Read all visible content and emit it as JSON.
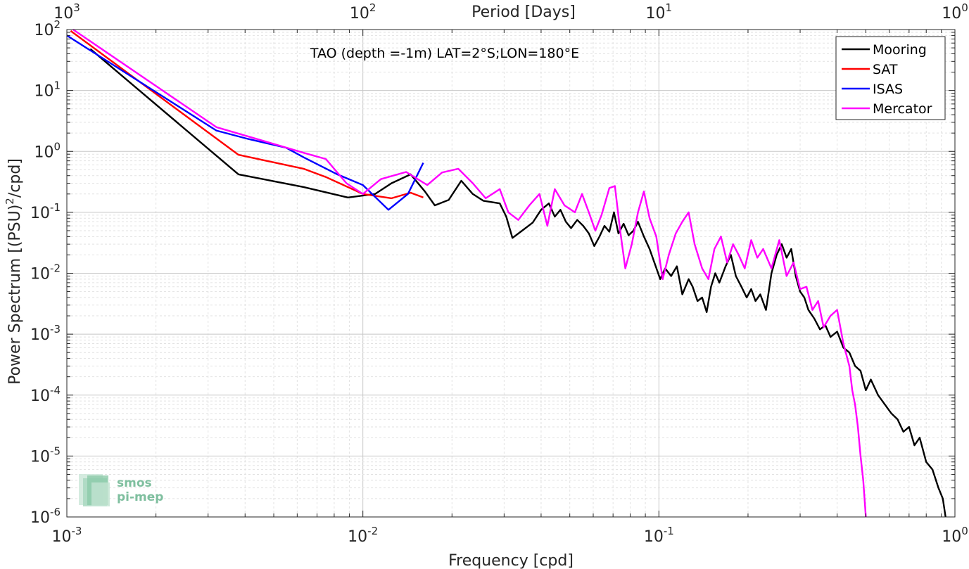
{
  "chart_data": {
    "type": "line",
    "title": "TAO (depth =-1m) LAT=2°S;LON=180°E",
    "xlabel": "Frequency [cpd]",
    "ylabel": "Power Spectrum [(PSU)",
    "ylabel_exp": "2",
    "ylabel_tail": "/cpd]",
    "top_xlabel": "Period [Days]",
    "xscale": "log",
    "yscale": "log",
    "xlim": [
      0.001,
      1
    ],
    "ylim": [
      1e-06,
      100
    ],
    "grid": true,
    "legend_position": "top-right",
    "x_ticks": [
      {
        "value": 0.001,
        "base": "10",
        "exp": "-3"
      },
      {
        "value": 0.01,
        "base": "10",
        "exp": "-2"
      },
      {
        "value": 0.1,
        "base": "10",
        "exp": "-1"
      },
      {
        "value": 1,
        "base": "10",
        "exp": "0"
      }
    ],
    "top_ticks": [
      {
        "value": 0.001,
        "base": "10",
        "exp": "3"
      },
      {
        "value": 0.01,
        "base": "10",
        "exp": "2"
      },
      {
        "value": 0.1,
        "base": "10",
        "exp": "1"
      },
      {
        "value": 1,
        "base": "10",
        "exp": "0"
      }
    ],
    "y_ticks": [
      {
        "value": 100,
        "base": "10",
        "exp": "2"
      },
      {
        "value": 10,
        "base": "10",
        "exp": "1"
      },
      {
        "value": 1,
        "base": "10",
        "exp": "0"
      },
      {
        "value": 0.1,
        "base": "10",
        "exp": "-1"
      },
      {
        "value": 0.01,
        "base": "10",
        "exp": "-2"
      },
      {
        "value": 0.001,
        "base": "10",
        "exp": "-3"
      },
      {
        "value": 0.0001,
        "base": "10",
        "exp": "-4"
      },
      {
        "value": 1e-05,
        "base": "10",
        "exp": "-5"
      },
      {
        "value": 1e-06,
        "base": "10",
        "exp": "-6"
      }
    ],
    "series": [
      {
        "name": "Mooring",
        "color": "#000000",
        "points": [
          [
            0.0012,
            48
          ],
          [
            0.0038,
            0.42
          ],
          [
            0.0063,
            0.26
          ],
          [
            0.0089,
            0.175
          ],
          [
            0.011,
            0.2
          ],
          [
            0.0125,
            0.3
          ],
          [
            0.0145,
            0.42
          ],
          [
            0.0162,
            0.22
          ],
          [
            0.0175,
            0.13
          ],
          [
            0.0195,
            0.16
          ],
          [
            0.0215,
            0.33
          ],
          [
            0.0235,
            0.2
          ],
          [
            0.0255,
            0.155
          ],
          [
            0.029,
            0.14
          ],
          [
            0.0305,
            0.085
          ],
          [
            0.032,
            0.038
          ],
          [
            0.0345,
            0.05
          ],
          [
            0.0375,
            0.068
          ],
          [
            0.04,
            0.11
          ],
          [
            0.0425,
            0.14
          ],
          [
            0.0445,
            0.085
          ],
          [
            0.0465,
            0.11
          ],
          [
            0.0485,
            0.07
          ],
          [
            0.0505,
            0.055
          ],
          [
            0.053,
            0.075
          ],
          [
            0.0555,
            0.06
          ],
          [
            0.058,
            0.045
          ],
          [
            0.0605,
            0.028
          ],
          [
            0.063,
            0.04
          ],
          [
            0.0655,
            0.06
          ],
          [
            0.068,
            0.048
          ],
          [
            0.0705,
            0.1
          ],
          [
            0.073,
            0.045
          ],
          [
            0.076,
            0.065
          ],
          [
            0.079,
            0.042
          ],
          [
            0.082,
            0.05
          ],
          [
            0.085,
            0.07
          ],
          [
            0.089,
            0.04
          ],
          [
            0.093,
            0.025
          ],
          [
            0.097,
            0.014
          ],
          [
            0.101,
            0.008
          ],
          [
            0.105,
            0.012
          ],
          [
            0.11,
            0.009
          ],
          [
            0.115,
            0.013
          ],
          [
            0.12,
            0.0045
          ],
          [
            0.126,
            0.008
          ],
          [
            0.13,
            0.006
          ],
          [
            0.135,
            0.0035
          ],
          [
            0.14,
            0.004
          ],
          [
            0.145,
            0.0023
          ],
          [
            0.15,
            0.006
          ],
          [
            0.155,
            0.01
          ],
          [
            0.16,
            0.007
          ],
          [
            0.168,
            0.013
          ],
          [
            0.175,
            0.02
          ],
          [
            0.182,
            0.009
          ],
          [
            0.19,
            0.006
          ],
          [
            0.198,
            0.004
          ],
          [
            0.205,
            0.0055
          ],
          [
            0.212,
            0.0035
          ],
          [
            0.22,
            0.0045
          ],
          [
            0.23,
            0.0025
          ],
          [
            0.24,
            0.01
          ],
          [
            0.25,
            0.02
          ],
          [
            0.26,
            0.03
          ],
          [
            0.27,
            0.018
          ],
          [
            0.28,
            0.025
          ],
          [
            0.29,
            0.009
          ],
          [
            0.3,
            0.005
          ],
          [
            0.31,
            0.004
          ],
          [
            0.32,
            0.0025
          ],
          [
            0.335,
            0.0018
          ],
          [
            0.35,
            0.0012
          ],
          [
            0.365,
            0.0014
          ],
          [
            0.38,
            0.0009
          ],
          [
            0.4,
            0.0011
          ],
          [
            0.42,
            0.0006
          ],
          [
            0.44,
            0.0005
          ],
          [
            0.46,
            0.0003
          ],
          [
            0.48,
            0.00025
          ],
          [
            0.5,
            0.00012
          ],
          [
            0.52,
            0.00018
          ],
          [
            0.55,
            0.0001
          ],
          [
            0.58,
            7e-05
          ],
          [
            0.61,
            5e-05
          ],
          [
            0.64,
            4e-05
          ],
          [
            0.67,
            2.5e-05
          ],
          [
            0.7,
            3e-05
          ],
          [
            0.73,
            1.5e-05
          ],
          [
            0.76,
            2e-05
          ],
          [
            0.8,
            8e-06
          ],
          [
            0.84,
            6e-06
          ],
          [
            0.88,
            3e-06
          ],
          [
            0.91,
            2e-06
          ],
          [
            0.93,
            1e-06
          ]
        ]
      },
      {
        "name": "SAT",
        "color": "#ff0000",
        "points": [
          [
            0.00103,
            95
          ],
          [
            0.0038,
            0.88
          ],
          [
            0.0063,
            0.52
          ],
          [
            0.0075,
            0.38
          ],
          [
            0.01,
            0.2
          ],
          [
            0.0125,
            0.17
          ],
          [
            0.0145,
            0.21
          ],
          [
            0.016,
            0.175
          ]
        ]
      },
      {
        "name": "ISAS",
        "color": "#0000ff",
        "points": [
          [
            0.001,
            80
          ],
          [
            0.0032,
            2.2
          ],
          [
            0.0041,
            1.6
          ],
          [
            0.0055,
            1.15
          ],
          [
            0.0063,
            0.8
          ],
          [
            0.0082,
            0.42
          ],
          [
            0.01,
            0.28
          ],
          [
            0.0122,
            0.11
          ],
          [
            0.0142,
            0.2
          ],
          [
            0.016,
            0.65
          ]
        ]
      },
      {
        "name": "Mercator",
        "color": "#ff00ff",
        "points": [
          [
            0.00105,
            100
          ],
          [
            0.0032,
            2.5
          ],
          [
            0.0047,
            1.45
          ],
          [
            0.0063,
            0.95
          ],
          [
            0.0075,
            0.75
          ],
          [
            0.0088,
            0.3
          ],
          [
            0.01,
            0.2
          ],
          [
            0.0115,
            0.35
          ],
          [
            0.014,
            0.46
          ],
          [
            0.0165,
            0.28
          ],
          [
            0.0185,
            0.45
          ],
          [
            0.021,
            0.52
          ],
          [
            0.0235,
            0.3
          ],
          [
            0.026,
            0.17
          ],
          [
            0.029,
            0.24
          ],
          [
            0.031,
            0.1
          ],
          [
            0.0335,
            0.075
          ],
          [
            0.0365,
            0.13
          ],
          [
            0.0395,
            0.2
          ],
          [
            0.042,
            0.06
          ],
          [
            0.0445,
            0.24
          ],
          [
            0.048,
            0.13
          ],
          [
            0.052,
            0.1
          ],
          [
            0.055,
            0.2
          ],
          [
            0.058,
            0.1
          ],
          [
            0.061,
            0.05
          ],
          [
            0.064,
            0.09
          ],
          [
            0.068,
            0.25
          ],
          [
            0.071,
            0.27
          ],
          [
            0.074,
            0.05
          ],
          [
            0.077,
            0.012
          ],
          [
            0.081,
            0.03
          ],
          [
            0.085,
            0.1
          ],
          [
            0.089,
            0.22
          ],
          [
            0.093,
            0.08
          ],
          [
            0.098,
            0.04
          ],
          [
            0.103,
            0.008
          ],
          [
            0.108,
            0.02
          ],
          [
            0.114,
            0.045
          ],
          [
            0.12,
            0.07
          ],
          [
            0.126,
            0.1
          ],
          [
            0.132,
            0.03
          ],
          [
            0.14,
            0.012
          ],
          [
            0.147,
            0.008
          ],
          [
            0.154,
            0.025
          ],
          [
            0.162,
            0.04
          ],
          [
            0.17,
            0.015
          ],
          [
            0.178,
            0.03
          ],
          [
            0.186,
            0.02
          ],
          [
            0.195,
            0.012
          ],
          [
            0.205,
            0.035
          ],
          [
            0.215,
            0.018
          ],
          [
            0.225,
            0.025
          ],
          [
            0.24,
            0.012
          ],
          [
            0.255,
            0.035
          ],
          [
            0.27,
            0.009
          ],
          [
            0.285,
            0.015
          ],
          [
            0.3,
            0.0055
          ],
          [
            0.315,
            0.006
          ],
          [
            0.33,
            0.0025
          ],
          [
            0.345,
            0.0035
          ],
          [
            0.36,
            0.0013
          ],
          [
            0.38,
            0.002
          ],
          [
            0.4,
            0.0025
          ],
          [
            0.42,
            0.0007
          ],
          [
            0.44,
            0.0003
          ],
          [
            0.45,
            0.00012
          ],
          [
            0.46,
            7e-05
          ],
          [
            0.47,
            3e-05
          ],
          [
            0.48,
            1e-05
          ],
          [
            0.49,
            4e-06
          ],
          [
            0.5,
            1e-06
          ]
        ]
      }
    ]
  },
  "logo": {
    "line1": "smos",
    "line2": "pi-mep"
  }
}
